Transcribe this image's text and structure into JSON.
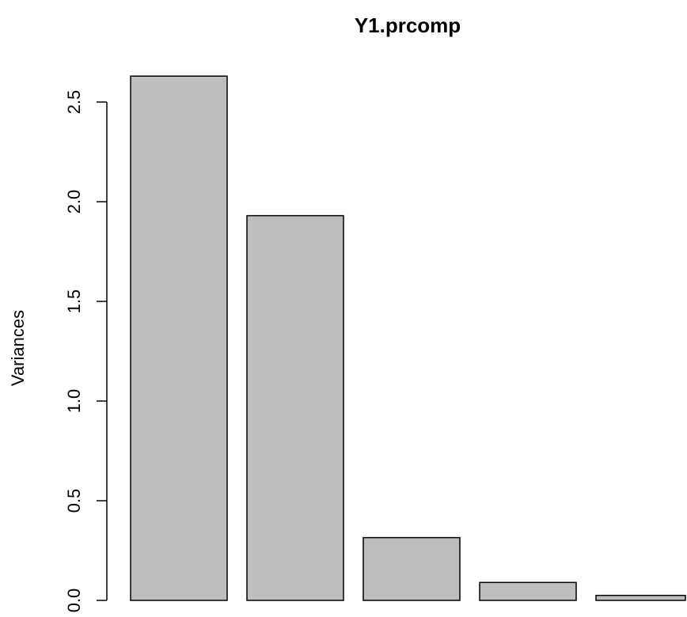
{
  "chart_data": {
    "type": "bar",
    "title": "Y1.prcomp",
    "ylabel": "Variances",
    "xlabel": "",
    "categories": [
      "",
      "",
      "",
      "",
      ""
    ],
    "values": [
      2.63,
      1.93,
      0.315,
      0.09,
      0.025
    ],
    "yticks": [
      0.0,
      0.5,
      1.0,
      1.5,
      2.0,
      2.5
    ],
    "ytick_labels": [
      "0.0",
      "0.5",
      "1.0",
      "1.5",
      "2.0",
      "2.5"
    ],
    "ylim": [
      0,
      2.7
    ],
    "grid": false,
    "colors": {
      "bar_fill": "#bebebe",
      "bar_stroke": "#000000"
    }
  }
}
